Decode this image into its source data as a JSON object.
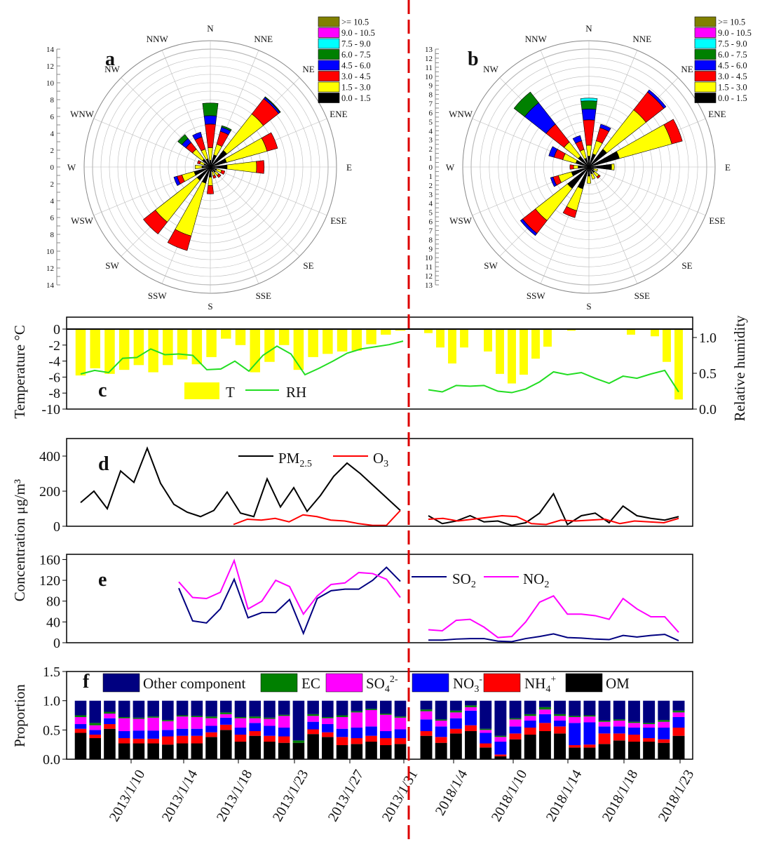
{
  "colors": {
    "wind": [
      "#000000",
      "#ffff00",
      "#ff0000",
      "#0000ff",
      "#008000",
      "#00ffff",
      "#ff00ff",
      "#808000"
    ],
    "temperature": "#ffff00",
    "rh": "#22dd22",
    "pm25": "#000000",
    "o3": "#ff0000",
    "so2": "#000080",
    "no2": "#ff00ff",
    "divider": "#dd0000",
    "components": {
      "Other component": "#000080",
      "EC": "#008000",
      "SO4": "#ff00ff",
      "NO3": "#0000ff",
      "NH4": "#ff0000",
      "OM": "#000000"
    }
  },
  "wind_roses": [
    {
      "panel_label": "a",
      "max": 14,
      "radial_ticks": [
        "0",
        "2",
        "4",
        "6",
        "8",
        "10",
        "12",
        "14"
      ],
      "legend": [
        ">= 10.5",
        "9.0 - 10.5",
        "7.5 - 9.0",
        "6.0 - 7.5",
        "4.5 - 6.0",
        "3.0 - 4.5",
        "1.5 - 3.0",
        "0.0 - 1.5"
      ],
      "directions": [
        "N",
        "NNE",
        "NE",
        "ENE",
        "E",
        "ESE",
        "SE",
        "SSE",
        "S",
        "SSW",
        "SW",
        "WSW",
        "W",
        "WNW",
        "NW",
        "NNW"
      ],
      "sectors": {
        "N": [
          0.8,
          1.5,
          2.8,
          1.0,
          1.5
        ],
        "NNE": [
          1.5,
          1.3,
          1.6,
          0.5,
          0.2
        ],
        "NE": [
          2.5,
          5.5,
          2.3,
          0.2,
          0.1
        ],
        "ENE": [
          2.0,
          5.0,
          1.3
        ],
        "E": [
          2.0,
          3.5,
          0.9
        ],
        "ESE": [
          0.8,
          0.6,
          0.4
        ],
        "SE": [
          0.8,
          0.5,
          0.3
        ],
        "SSE": [
          0.6,
          0.5,
          0.3
        ],
        "S": [
          1.2,
          1.0,
          1.0
        ],
        "SSW": [
          2.0,
          6.5,
          1.8
        ],
        "SW": [
          2.0,
          6.3,
          1.8
        ],
        "WSW": [
          2.0,
          1.5,
          0.6,
          0.4
        ],
        "W": [
          1.0,
          0.8
        ],
        "WNW": [
          0.8,
          0.5,
          0.3
        ],
        "NW": [
          1.2,
          1.5,
          1.0,
          0.6,
          0.6
        ],
        "NNW": [
          1.0,
          1.2,
          1.5,
          0.6
        ]
      }
    },
    {
      "panel_label": "b",
      "max": 13,
      "radial_ticks": [
        "0",
        "1",
        "2",
        "3",
        "4",
        "5",
        "6",
        "7",
        "8",
        "9",
        "10",
        "11",
        "12",
        "13"
      ],
      "legend": [
        ">= 10.5",
        "9.0 - 10.5",
        "7.5 - 9.0",
        "6.0 - 7.5",
        "4.5 - 6.0",
        "3.0 - 4.5",
        "1.5 - 3.0",
        "0.0 - 1.5"
      ],
      "directions": [
        "N",
        "NNE",
        "NE",
        "ENE",
        "E",
        "ESE",
        "SE",
        "SSE",
        "S",
        "SSW",
        "SW",
        "WSW",
        "W",
        "WNW",
        "NW",
        "NNW"
      ],
      "sectors": {
        "N": [
          1.2,
          1.2,
          2.8,
          1.2,
          0.9,
          0.3
        ],
        "NNE": [
          1.5,
          1.5,
          1.5,
          0.4
        ],
        "NE": [
          2.5,
          5.5,
          2.5,
          0.3
        ],
        "ENE": [
          3.5,
          6.0,
          1.2
        ],
        "E": [
          2.5,
          0.3
        ],
        "ESE": [
          0.6,
          0.4
        ],
        "SE": [
          0.8,
          0.6,
          0.2
        ],
        "SSE": [
          0.8,
          0.6
        ],
        "S": [
          1.0,
          0.8
        ],
        "SSW": [
          2.5,
          2.5,
          0.8
        ],
        "SW": [
          3.0,
          4.5,
          1.8,
          0.3
        ],
        "WSW": [
          2.0,
          1.5,
          0.6,
          0.3
        ],
        "W": [
          1.2,
          0.5,
          0.4
        ],
        "WNW": [
          1.5,
          1.5,
          1.0,
          0.6
        ],
        "NW": [
          1.5,
          2.0,
          2.5,
          3.0,
          1.5
        ],
        "NNW": [
          1.0,
          1.0,
          1.0,
          0.6
        ]
      }
    }
  ],
  "panel_c": {
    "panel_label": "c",
    "ylabel_left": "Temperature °C",
    "ylabel_right": "Relative humidity",
    "left_ticks": [
      "0",
      "-2",
      "-4",
      "-6",
      "-8",
      "-10"
    ],
    "right_ticks": [
      "1.0",
      "0.5",
      "0.0"
    ],
    "legend_T": "T",
    "legend_RH": "RH",
    "period_2013": {
      "temperature": [
        -5.8,
        -4.9,
        -5.6,
        -5.1,
        -4.5,
        -5.4,
        -4.5,
        -3.8,
        -4.4,
        -3.5,
        -1.2,
        -2.0,
        -5.4,
        -4.1,
        -2.0,
        -5.1,
        -3.5,
        -3.1,
        -2.8,
        -2.7,
        -1.9,
        -0.7,
        -0.2
      ],
      "rh": [
        0.49,
        0.54,
        0.51,
        0.71,
        0.72,
        0.84,
        0.76,
        0.77,
        0.75,
        0.55,
        0.56,
        0.67,
        0.53,
        0.75,
        0.88,
        0.77,
        0.48,
        0.57,
        0.67,
        0.78,
        0.84,
        0.87,
        0.9,
        0.95
      ]
    },
    "period_2018": {
      "temperature": [
        -0.5,
        -2.3,
        -4.3,
        -2.3,
        0,
        -2.8,
        -5.6,
        -6.8,
        -5.7,
        -3.7,
        -2.2,
        0,
        -0.2,
        0,
        0,
        0,
        0,
        -0.7,
        0,
        -0.9,
        -4.1,
        -8.8
      ],
      "rh": [
        0.27,
        0.24,
        0.33,
        0.32,
        0.33,
        0.25,
        0.23,
        0.28,
        0.38,
        0.52,
        0.48,
        0.51,
        0.43,
        0.36,
        0.46,
        0.43,
        0.49,
        0.54,
        0.24
      ]
    }
  },
  "panel_d": {
    "panel_label": "d",
    "ylabel": "Concentration μg/m³",
    "ticks": [
      "0",
      "200",
      "400"
    ],
    "legend_pm": "PM",
    "legend_pm_sub": "2.5",
    "legend_o3": "O",
    "legend_o3_sub": "3",
    "period_2013": {
      "pm25": [
        135,
        200,
        100,
        315,
        250,
        445,
        245,
        125,
        80,
        55,
        90,
        195,
        75,
        55,
        270,
        110,
        220,
        85,
        175,
        285,
        360,
        300,
        230,
        160,
        90
      ],
      "o3": [
        10,
        40,
        35,
        45,
        25,
        65,
        55,
        35,
        30,
        15,
        5,
        5,
        90
      ]
    },
    "period_2018": {
      "pm25": [
        60,
        15,
        30,
        60,
        25,
        30,
        5,
        20,
        75,
        185,
        10,
        60,
        75,
        20,
        115,
        60,
        45,
        35,
        55
      ],
      "o3": [
        40,
        45,
        30,
        40,
        50,
        60,
        55,
        15,
        10,
        35,
        30,
        35,
        40,
        15,
        30,
        25,
        20,
        45
      ]
    }
  },
  "panel_e": {
    "panel_label": "e",
    "ticks": [
      "0",
      "40",
      "80",
      "120",
      "160"
    ],
    "legend_so2": "SO",
    "legend_so2_sub": "2",
    "legend_no2": "NO",
    "legend_no2_sub": "2",
    "period_2013": {
      "so2": [
        105,
        42,
        38,
        65,
        122,
        48,
        58,
        58,
        83,
        18,
        85,
        100,
        103,
        103,
        120,
        145,
        118
      ],
      "no2": [
        117,
        87,
        85,
        97,
        158,
        65,
        80,
        120,
        108,
        55,
        90,
        112,
        115,
        135,
        133,
        122,
        87
      ]
    },
    "period_2018": {
      "so2": [
        5,
        5,
        7,
        8,
        8,
        3,
        2,
        8,
        12,
        17,
        10,
        9,
        7,
        6,
        14,
        11,
        14,
        16,
        4
      ],
      "no2": [
        25,
        23,
        43,
        45,
        30,
        10,
        12,
        40,
        78,
        90,
        55,
        55,
        52,
        45,
        85,
        65,
        50,
        50,
        20
      ]
    }
  },
  "panel_f": {
    "panel_label": "f",
    "ylabel": "Proportion",
    "ticks": [
      "0.0",
      "0.5",
      "1.0",
      "1.5"
    ],
    "legend": [
      "Other component",
      "EC",
      "SO4",
      "NO3",
      "NH4",
      "OM"
    ],
    "legend_labels": {
      "other": "Other component",
      "ec": "EC",
      "so4": "SO",
      "so4_sub": "4",
      "so4_sup": "2-",
      "no3": "NO",
      "no3_sub": "3",
      "no3_sup": "-",
      "nh4": "NH",
      "nh4_sub": "4",
      "nh4_sup": "+",
      "om": "OM"
    },
    "period_2013": [
      [
        0.45,
        0.07,
        0.08,
        0.12,
        0.03
      ],
      [
        0.36,
        0.06,
        0.08,
        0.08,
        0.04
      ],
      [
        0.52,
        0.08,
        0.1,
        0.08,
        0.03
      ],
      [
        0.27,
        0.09,
        0.12,
        0.22,
        0.02
      ],
      [
        0.27,
        0.08,
        0.14,
        0.2,
        0.02
      ],
      [
        0.27,
        0.08,
        0.14,
        0.22,
        0.02
      ],
      [
        0.25,
        0.14,
        0.11,
        0.15,
        0.02
      ],
      [
        0.27,
        0.13,
        0.12,
        0.21,
        0.02
      ],
      [
        0.27,
        0.13,
        0.12,
        0.2,
        0.02
      ],
      [
        0.38,
        0.08,
        0.11,
        0.13,
        0.03
      ],
      [
        0.5,
        0.09,
        0.12,
        0.06,
        0.03
      ],
      [
        0.3,
        0.12,
        0.12,
        0.16,
        0.02
      ],
      [
        0.4,
        0.08,
        0.14,
        0.08,
        0.03
      ],
      [
        0.3,
        0.1,
        0.17,
        0.12,
        0.02
      ],
      [
        0.28,
        0.11,
        0.15,
        0.2,
        0.02
      ],
      [
        0.28,
        0.0,
        0.0,
        0.0,
        0.04
      ],
      [
        0.43,
        0.08,
        0.13,
        0.1,
        0.03
      ],
      [
        0.38,
        0.08,
        0.14,
        0.1,
        0.02
      ],
      [
        0.24,
        0.14,
        0.14,
        0.2,
        0.03
      ],
      [
        0.26,
        0.1,
        0.18,
        0.26,
        0.02
      ],
      [
        0.3,
        0.1,
        0.16,
        0.28,
        0.02
      ],
      [
        0.24,
        0.12,
        0.12,
        0.28,
        0.02
      ],
      [
        0.26,
        0.1,
        0.15,
        0.2,
        0.02
      ]
    ],
    "period_2018": [
      [
        0.4,
        0.08,
        0.2,
        0.14,
        0.03
      ],
      [
        0.28,
        0.1,
        0.18,
        0.1,
        0.02
      ],
      [
        0.44,
        0.08,
        0.18,
        0.1,
        0.03
      ],
      [
        0.48,
        0.1,
        0.25,
        0.06,
        0.03
      ],
      [
        0.2,
        0.07,
        0.18,
        0.05,
        0.02
      ],
      [
        0.05,
        0.03,
        0.22,
        0.08,
        0.02
      ],
      [
        0.34,
        0.1,
        0.12,
        0.12,
        0.02
      ],
      [
        0.42,
        0.12,
        0.12,
        0.08,
        0.03
      ],
      [
        0.48,
        0.14,
        0.15,
        0.08,
        0.04
      ],
      [
        0.44,
        0.12,
        0.1,
        0.08,
        0.03
      ],
      [
        0.2,
        0.04,
        0.38,
        0.1,
        0.02
      ],
      [
        0.2,
        0.05,
        0.38,
        0.1,
        0.02
      ],
      [
        0.26,
        0.18,
        0.12,
        0.08,
        0.02
      ],
      [
        0.32,
        0.12,
        0.12,
        0.1,
        0.02
      ],
      [
        0.3,
        0.12,
        0.12,
        0.08,
        0.02
      ],
      [
        0.3,
        0.06,
        0.18,
        0.06,
        0.02
      ],
      [
        0.28,
        0.06,
        0.2,
        0.1,
        0.03
      ],
      [
        0.4,
        0.14,
        0.18,
        0.08,
        0.03
      ]
    ]
  },
  "x_ticks_2013": [
    "2013/1/10",
    "2013/1/14",
    "2013/1/18",
    "2013/1/23",
    "2013/1/27",
    "2013/1/31"
  ],
  "x_ticks_2018": [
    "2018/1/4",
    "2018/1/10",
    "2018/1/14",
    "2018/1/18",
    "2018/1/23"
  ]
}
